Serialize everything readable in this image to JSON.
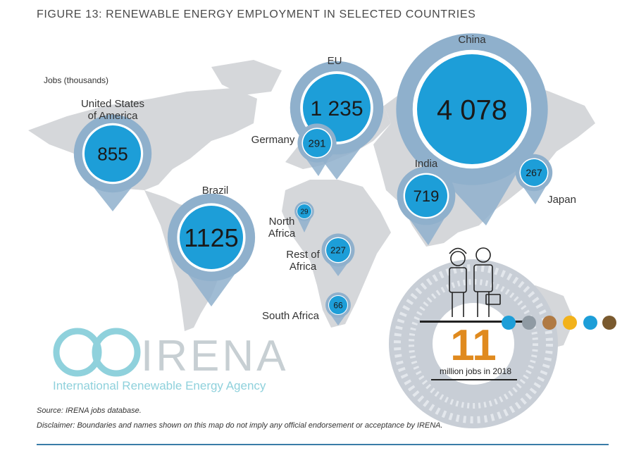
{
  "title": "FIGURE 13: RENEWABLE ENERGY EMPLOYMENT IN SELECTED COUNTRIES",
  "units_label": "Jobs (thousands)",
  "markers": [
    {
      "region": "United States of America",
      "label_lines": [
        "United States",
        "of America"
      ],
      "value": "855"
    },
    {
      "region": "EU",
      "label_lines": [
        "EU"
      ],
      "value": "1 235"
    },
    {
      "region": "Germany",
      "label_lines": [
        "Germany"
      ],
      "value": "291"
    },
    {
      "region": "China",
      "label_lines": [
        "China"
      ],
      "value": "4 078"
    },
    {
      "region": "India",
      "label_lines": [
        "India"
      ],
      "value": "719"
    },
    {
      "region": "Japan",
      "label_lines": [
        "Japan"
      ],
      "value": "267"
    },
    {
      "region": "Brazil",
      "label_lines": [
        "Brazil"
      ],
      "value": "1125"
    },
    {
      "region": "North Africa",
      "label_lines": [
        "North",
        "Africa"
      ],
      "value": "29"
    },
    {
      "region": "Rest of Africa",
      "label_lines": [
        "Rest of",
        "Africa"
      ],
      "value": "227"
    },
    {
      "region": "South Africa",
      "label_lines": [
        "South Africa"
      ],
      "value": "66"
    }
  ],
  "total": {
    "value": "11",
    "caption": "million jobs in 2018"
  },
  "logo": {
    "name": "IRENA",
    "full_name": "International Renewable Energy Agency"
  },
  "source": "Source: IRENA jobs database.",
  "disclaimer": "Disclaimer: Boundaries and names shown on this map do not imply any official endorsement or acceptance by IRENA.",
  "colors": {
    "marker_fill": "#1d9ed8",
    "marker_halo": "#8fb0cc",
    "land": "#d5d7da",
    "total_accent": "#e08a1e"
  },
  "icons": [
    "worker-icon",
    "businessman-icon",
    "hydropower-icon",
    "geothermal-icon",
    "bioenergy-icon",
    "solar-icon",
    "wind-icon",
    "biofuel-icon"
  ]
}
